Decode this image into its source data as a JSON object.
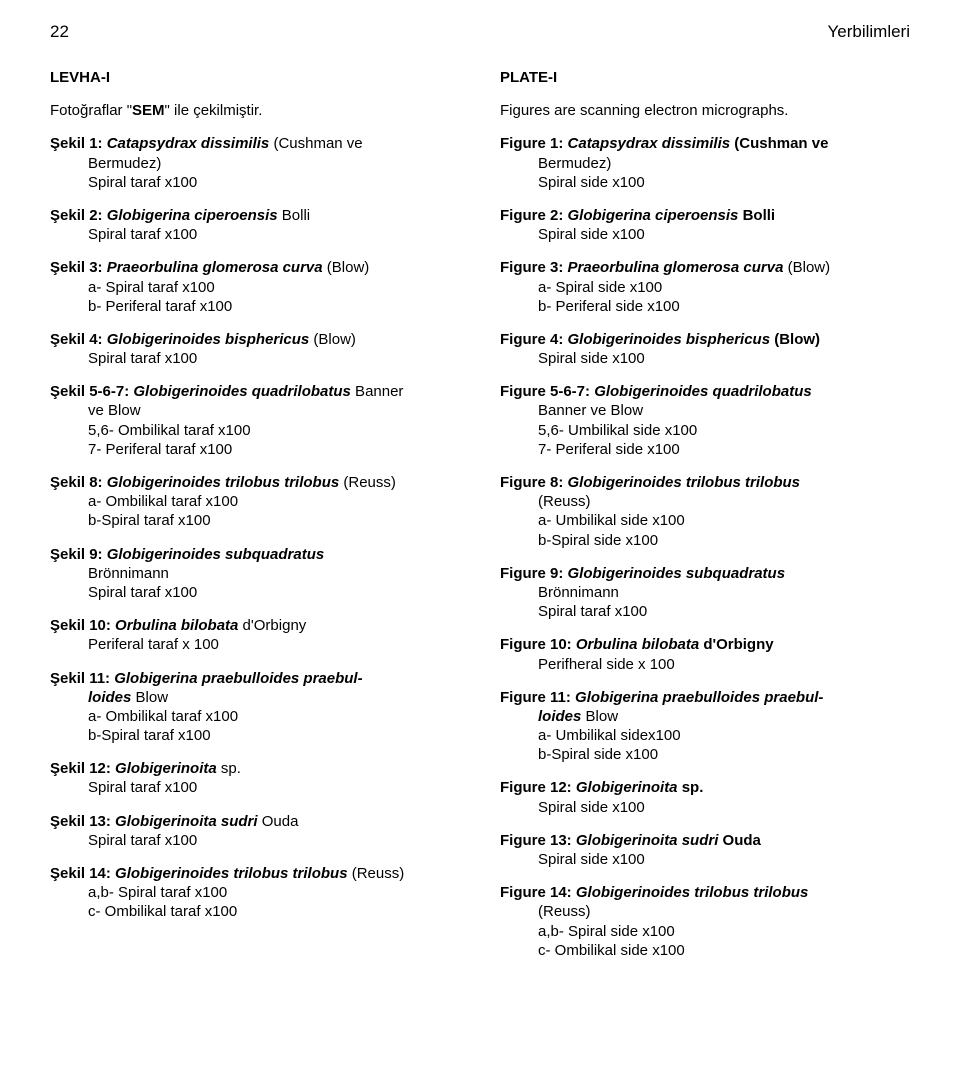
{
  "header": {
    "page_number": "22",
    "journal": "Yerbilimleri"
  },
  "left": {
    "plate_title": "LEVHA-I",
    "subtitle": {
      "pre": "Fotoğraflar \"",
      "bold": "SEM",
      "post": "\" ile çekilmiştir."
    },
    "entries": [
      {
        "lines": [
          {
            "indent": 0,
            "runs": [
              {
                "t": "Şekil 1: ",
                "b": 1
              },
              {
                "t": "Catapsydrax dissimilis",
                "b": 1,
                "i": 1
              },
              {
                "t": " (Cushman ve",
                "b": 0
              }
            ]
          },
          {
            "indent": 1,
            "runs": [
              {
                "t": "Bermudez)"
              }
            ]
          },
          {
            "indent": 1,
            "runs": [
              {
                "t": "Spiral taraf x100"
              }
            ]
          }
        ]
      },
      {
        "lines": [
          {
            "indent": 0,
            "runs": [
              {
                "t": "Şekil 2: ",
                "b": 1
              },
              {
                "t": "Globigerina ciperoensis",
                "b": 1,
                "i": 1
              },
              {
                "t": "  Bolli"
              }
            ]
          },
          {
            "indent": 1,
            "runs": [
              {
                "t": "Spiral taraf x100"
              }
            ]
          }
        ]
      },
      {
        "lines": [
          {
            "indent": 0,
            "runs": [
              {
                "t": "Şekil 3: ",
                "b": 1
              },
              {
                "t": "Praeorbulina glomerosa curva",
                "b": 1,
                "i": 1
              },
              {
                "t": "  (Blow)"
              }
            ]
          },
          {
            "indent": 1,
            "runs": [
              {
                "t": "a- Spiral taraf x100"
              }
            ]
          },
          {
            "indent": 1,
            "runs": [
              {
                "t": "b- Periferal taraf x100"
              }
            ]
          }
        ]
      },
      {
        "lines": [
          {
            "indent": 0,
            "runs": [
              {
                "t": "Şekil 4: ",
                "b": 1
              },
              {
                "t": "Globigerinoides bisphericus",
                "b": 1,
                "i": 1
              },
              {
                "t": " (Blow)"
              }
            ]
          },
          {
            "indent": 1,
            "runs": [
              {
                "t": "Spiral taraf x100"
              }
            ]
          }
        ]
      },
      {
        "lines": [
          {
            "indent": 0,
            "runs": [
              {
                "t": "Şekil 5-6-7: ",
                "b": 1
              },
              {
                "t": "Globigerinoides quadrilobatus",
                "b": 1,
                "i": 1
              },
              {
                "t": " Banner"
              }
            ]
          },
          {
            "indent": 1,
            "runs": [
              {
                "t": "ve Blow"
              }
            ]
          },
          {
            "indent": 1,
            "runs": [
              {
                "t": "5,6- Ombilikal taraf x100"
              }
            ]
          },
          {
            "indent": 1,
            "runs": [
              {
                "t": "7- Periferal taraf x100"
              }
            ]
          }
        ]
      },
      {
        "lines": [
          {
            "indent": 0,
            "runs": [
              {
                "t": "Şekil 8: ",
                "b": 1
              },
              {
                "t": "Globigerinoides trilobus trilobus",
                "b": 1,
                "i": 1
              },
              {
                "t": "  (Reuss)"
              }
            ]
          },
          {
            "indent": 1,
            "runs": [
              {
                "t": "a- Ombilikal taraf x100"
              }
            ]
          },
          {
            "indent": 1,
            "runs": [
              {
                "t": "b-Spiral taraf x100"
              }
            ]
          }
        ]
      },
      {
        "lines": [
          {
            "indent": 0,
            "runs": [
              {
                "t": "Şekil 9: ",
                "b": 1
              },
              {
                "t": "Globigerinoides subquadratus",
                "b": 1,
                "i": 1
              }
            ]
          },
          {
            "indent": 1,
            "runs": [
              {
                "t": "Brönnimann"
              }
            ]
          },
          {
            "indent": 1,
            "runs": [
              {
                "t": "Spiral taraf x100"
              }
            ]
          }
        ]
      },
      {
        "lines": [
          {
            "indent": 0,
            "runs": [
              {
                "t": "Şekil 10: ",
                "b": 1
              },
              {
                "t": "Orbulina bilobata",
                "b": 1,
                "i": 1
              },
              {
                "t": "   d'Orbigny"
              }
            ]
          },
          {
            "indent": 1,
            "runs": [
              {
                "t": "Periferal taraf x 100"
              }
            ]
          }
        ]
      },
      {
        "lines": [
          {
            "indent": 0,
            "runs": [
              {
                "t": "Şekil 11: ",
                "b": 1
              },
              {
                "t": "Globigerina praebulloides  praebul-",
                "b": 1,
                "i": 1
              }
            ]
          },
          {
            "indent": 1,
            "runs": [
              {
                "t": "loides",
                "b": 1,
                "i": 1
              },
              {
                "t": "  Blow"
              }
            ]
          },
          {
            "indent": 1,
            "runs": [
              {
                "t": "a- Ombilikal taraf x100"
              }
            ]
          },
          {
            "indent": 1,
            "runs": [
              {
                "t": "b-Spiral taraf x100"
              }
            ]
          }
        ]
      },
      {
        "lines": [
          {
            "indent": 0,
            "runs": [
              {
                "t": "Şekil 12: ",
                "b": 1
              },
              {
                "t": "Globigerinoita",
                "b": 1,
                "i": 1
              },
              {
                "t": " sp."
              }
            ]
          },
          {
            "indent": 1,
            "runs": [
              {
                "t": "Spiral taraf x100"
              }
            ]
          }
        ]
      },
      {
        "lines": [
          {
            "indent": 0,
            "runs": [
              {
                "t": "Şekil 13: ",
                "b": 1
              },
              {
                "t": "Globigerinoita sudri",
                "b": 1,
                "i": 1
              },
              {
                "t": " Ouda"
              }
            ]
          },
          {
            "indent": 1,
            "runs": [
              {
                "t": "Spiral taraf x100"
              }
            ]
          }
        ]
      },
      {
        "lines": [
          {
            "indent": 0,
            "runs": [
              {
                "t": "Şekil 14: ",
                "b": 1
              },
              {
                "t": "Globigerinoides trilobus trilobus",
                "b": 1,
                "i": 1
              },
              {
                "t": " (Reuss)"
              }
            ]
          },
          {
            "indent": 1,
            "runs": [
              {
                "t": "a,b- Spiral taraf x100"
              }
            ]
          },
          {
            "indent": 1,
            "runs": [
              {
                "t": "c- Ombilikal taraf x100"
              }
            ]
          }
        ]
      }
    ]
  },
  "right": {
    "plate_title": "PLATE-I",
    "subtitle_plain": "Figures are scanning electron micrographs.",
    "entries": [
      {
        "lines": [
          {
            "indent": 0,
            "runs": [
              {
                "t": "Figure 1: ",
                "b": 1
              },
              {
                "t": "Catapsydrax dissimilis",
                "b": 1,
                "i": 1
              },
              {
                "t": " (Cushman ve",
                "b": 1
              }
            ]
          },
          {
            "indent": 1,
            "runs": [
              {
                "t": "Bermudez)"
              }
            ]
          },
          {
            "indent": 1,
            "runs": [
              {
                "t": "Spiral side x100"
              }
            ]
          }
        ]
      },
      {
        "lines": [
          {
            "indent": 0,
            "runs": [
              {
                "t": "Figure 2: ",
                "b": 1
              },
              {
                "t": "Globigerina ciperoensis",
                "b": 1,
                "i": 1
              },
              {
                "t": "  Bolli",
                "b": 1
              }
            ]
          },
          {
            "indent": 1,
            "runs": [
              {
                "t": "Spiral side x100"
              }
            ]
          }
        ]
      },
      {
        "lines": [
          {
            "indent": 0,
            "runs": [
              {
                "t": "Figure 3: ",
                "b": 1
              },
              {
                "t": "Praeorbulina glomerosa curva",
                "b": 1,
                "i": 1
              },
              {
                "t": "    (Blow)"
              }
            ]
          },
          {
            "indent": 1,
            "runs": [
              {
                "t": "a- Spiral side x100"
              }
            ]
          },
          {
            "indent": 1,
            "runs": [
              {
                "t": "b- Periferal side x100"
              }
            ]
          }
        ]
      },
      {
        "lines": [
          {
            "indent": 0,
            "runs": [
              {
                "t": "Figure 4: ",
                "b": 1
              },
              {
                "t": "Globigerinoides bisphericus",
                "b": 1,
                "i": 1
              },
              {
                "t": " (Blow)",
                "b": 1
              }
            ]
          },
          {
            "indent": 1,
            "runs": [
              {
                "t": "Spiral side x100"
              }
            ]
          }
        ]
      },
      {
        "lines": [
          {
            "indent": 0,
            "runs": [
              {
                "t": "Figure 5-6-7: ",
                "b": 1
              },
              {
                "t": "Globigerinoides quadrilobatus",
                "b": 1,
                "i": 1
              }
            ]
          },
          {
            "indent": 1,
            "runs": [
              {
                "t": "Banner ve Blow"
              }
            ]
          },
          {
            "indent": 1,
            "runs": [
              {
                "t": "5,6- Umbilikal side x100"
              }
            ]
          },
          {
            "indent": 1,
            "runs": [
              {
                "t": "7- Periferal side x100"
              }
            ]
          }
        ]
      },
      {
        "lines": [
          {
            "indent": 0,
            "runs": [
              {
                "t": "Figure 8: ",
                "b": 1
              },
              {
                "t": "Globigerinoides trilobus trilobus",
                "b": 1,
                "i": 1
              }
            ]
          },
          {
            "indent": 1,
            "runs": [
              {
                "t": "(Reuss)"
              }
            ]
          },
          {
            "indent": 1,
            "runs": [
              {
                "t": "a- Umbilikal side x100"
              }
            ]
          },
          {
            "indent": 1,
            "runs": [
              {
                "t": "b-Spiral side x100"
              }
            ]
          }
        ]
      },
      {
        "lines": [
          {
            "indent": 0,
            "runs": [
              {
                "t": "Figure 9: ",
                "b": 1
              },
              {
                "t": "Globigerinoides subquadratus",
                "b": 1,
                "i": 1
              }
            ]
          },
          {
            "indent": 1,
            "runs": [
              {
                "t": "Brönnimann"
              }
            ]
          },
          {
            "indent": 1,
            "runs": [
              {
                "t": "Spiral taraf x100"
              }
            ]
          }
        ]
      },
      {
        "lines": [
          {
            "indent": 0,
            "runs": [
              {
                "t": "Figure 10: ",
                "b": 1
              },
              {
                "t": "Orbulina bilobata",
                "b": 1,
                "i": 1
              },
              {
                "t": "   d'Orbigny",
                "b": 1
              }
            ]
          },
          {
            "indent": 1,
            "runs": [
              {
                "t": "Perifheral side x 100"
              }
            ]
          }
        ]
      },
      {
        "lines": [
          {
            "indent": 0,
            "runs": [
              {
                "t": "Figure 11: ",
                "b": 1
              },
              {
                "t": "Globigerina praebulloides  praebul-",
                "b": 1,
                "i": 1
              }
            ]
          },
          {
            "indent": 1,
            "runs": [
              {
                "t": "loides",
                "b": 1,
                "i": 1
              },
              {
                "t": "  Blow"
              }
            ]
          },
          {
            "indent": 1,
            "runs": [
              {
                "t": "a- Umbilikal sidex100"
              }
            ]
          },
          {
            "indent": 1,
            "runs": [
              {
                "t": "b-Spiral side x100"
              }
            ]
          }
        ]
      },
      {
        "lines": [
          {
            "indent": 0,
            "runs": [
              {
                "t": "Figure 12: ",
                "b": 1
              },
              {
                "t": "Globigerinoita",
                "b": 1,
                "i": 1
              },
              {
                "t": " sp.",
                "b": 1
              }
            ]
          },
          {
            "indent": 1,
            "runs": [
              {
                "t": "Spiral side x100"
              }
            ]
          }
        ]
      },
      {
        "lines": [
          {
            "indent": 0,
            "runs": [
              {
                "t": "Figure 13: ",
                "b": 1
              },
              {
                "t": "Globigerinoita sudri",
                "b": 1,
                "i": 1
              },
              {
                "t": " Ouda",
                "b": 1
              }
            ]
          },
          {
            "indent": 1,
            "runs": [
              {
                "t": "Spiral side x100"
              }
            ]
          }
        ]
      },
      {
        "lines": [
          {
            "indent": 0,
            "runs": [
              {
                "t": "Figure 14: ",
                "b": 1
              },
              {
                "t": "Globigerinoides trilobus trilobus",
                "b": 1,
                "i": 1
              }
            ]
          },
          {
            "indent": 1,
            "runs": [
              {
                "t": "(Reuss)"
              }
            ]
          },
          {
            "indent": 1,
            "runs": [
              {
                "t": "a,b- Spiral side x100"
              }
            ]
          },
          {
            "indent": 1,
            "runs": [
              {
                "t": "c- Ombilikal side x100"
              }
            ]
          }
        ]
      }
    ]
  }
}
